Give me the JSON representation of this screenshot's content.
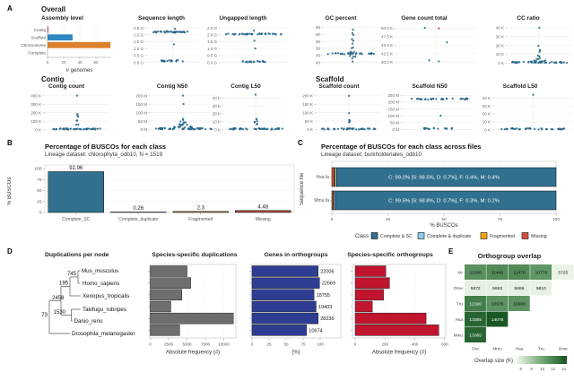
{
  "panel_labels": [
    "A",
    "B",
    "C",
    "D",
    "E"
  ],
  "sections": {
    "overall": "Overall",
    "contig": "Contig",
    "scaffold": "Scaffold"
  },
  "palette": {
    "strip_point": "#23658a",
    "axis": "#999999",
    "grid": "#ececec"
  },
  "chart_data": [
    {
      "id": "assembly_level",
      "type": "bar",
      "orientation": "horizontal",
      "title": "Assembly level",
      "categories": [
        "Contig",
        "Scaffold",
        "Chromosome",
        "Complete"
      ],
      "values": [
        1,
        31,
        78,
        0
      ],
      "colors": [
        "#a93e32",
        "#2c87c2",
        "#dd812e",
        "#cccccc"
      ],
      "xticks": [
        0,
        20,
        40,
        60
      ],
      "xlabel": "# genomes"
    },
    {
      "id": "sequence_length",
      "type": "strip",
      "title": "Sequence length",
      "ylim": [
        -0.15,
        2.7
      ],
      "yticks": [
        {
          "v": 2.5,
          "l": "2.5 G"
        },
        {
          "v": 2.0,
          "l": "2.0 G"
        },
        {
          "v": 1.5,
          "l": "1.5 G"
        },
        {
          "v": 1.0,
          "l": "1.0 G"
        },
        {
          "v": 0.5,
          "l": "0.5 G"
        },
        {
          "v": 0.0,
          "l": "0.0 G"
        }
      ],
      "clusters": [
        {
          "v": 2.2,
          "n": 36,
          "s": 0.92
        },
        {
          "v": 0.12,
          "n": 20,
          "s": 0.5
        }
      ],
      "points": [
        {
          "v": 2.42,
          "x": 0.1
        },
        {
          "v": 2.3,
          "x": -0.25
        },
        {
          "v": 1.27,
          "x": 0.05
        }
      ]
    },
    {
      "id": "ungapped_length",
      "type": "strip",
      "title": "Ungapped length",
      "ylim": [
        -0.15,
        2.7
      ],
      "yticks": [
        {
          "v": 2.5,
          "l": "2.5 G"
        },
        {
          "v": 2.0,
          "l": "2.0 G"
        },
        {
          "v": 1.5,
          "l": "1.5 G"
        },
        {
          "v": 1.0,
          "l": "1.0 G"
        },
        {
          "v": 0.5,
          "l": "0.5 G"
        },
        {
          "v": 0.0,
          "l": "0.0 G"
        }
      ],
      "clusters": [
        {
          "v": 2.05,
          "n": 36,
          "s": 0.92
        },
        {
          "v": 0.05,
          "n": 18,
          "s": 0.42
        }
      ],
      "points": [
        {
          "v": 1.55,
          "x": 0.02
        },
        {
          "v": 1.02,
          "x": 0.05
        },
        {
          "v": 2.3,
          "x": 0.0
        }
      ]
    },
    {
      "id": "gc_percent",
      "type": "strip",
      "title": "GC percent",
      "ylim": [
        38.5,
        66.5
      ],
      "yticks": [
        {
          "v": 65,
          "l": "65"
        },
        {
          "v": 60,
          "l": "60"
        },
        {
          "v": 55,
          "l": "55"
        },
        {
          "v": 50,
          "l": "50"
        },
        {
          "v": 45,
          "l": "45"
        },
        {
          "v": 40,
          "l": "40"
        }
      ],
      "clusters": [
        {
          "v": 46.3,
          "n": 30,
          "s": 0.95
        },
        {
          "v": 44.2,
          "n": 3,
          "s": 0.12
        },
        {
          "v": 47.6,
          "n": 2,
          "s": 0.08
        }
      ],
      "points": [
        {
          "v": 63,
          "x": 0.02
        },
        {
          "v": 60.5,
          "x": 0.0
        },
        {
          "v": 59.8,
          "x": 0.04
        },
        {
          "v": 56.5,
          "x": -0.02
        },
        {
          "v": 55.8,
          "x": 0.03
        },
        {
          "v": 53,
          "x": 0.0
        },
        {
          "v": 50.5,
          "x": 0.02
        },
        {
          "v": 50,
          "x": -0.03
        },
        {
          "v": 41,
          "x": 0.01
        },
        {
          "v": 42.5,
          "x": -0.01
        }
      ]
    },
    {
      "id": "gene_count_total",
      "type": "strip",
      "title": "Gene count total",
      "ylim": [
        39.3,
        50.9
      ],
      "yticks": [
        {
          "v": 50,
          "l": "50.0 K"
        },
        {
          "v": 47.5,
          "l": "47.5 K"
        },
        {
          "v": 45,
          "l": "45.0 K"
        },
        {
          "v": 42.5,
          "l": "42.5 K"
        },
        {
          "v": 40,
          "l": "40.0 K"
        }
      ],
      "clusters": [],
      "points": [
        {
          "v": 50,
          "x": -0.3
        },
        {
          "v": 50.05,
          "x": 0.08,
          "c": "#c0392b"
        },
        {
          "v": 46,
          "x": 0.3
        },
        {
          "v": 40.4,
          "x": -0.18
        },
        {
          "v": 40.15,
          "x": 0.08
        }
      ]
    },
    {
      "id": "cc_ratio",
      "type": "strip",
      "title": "CC ratio",
      "ylim": [
        -1.8,
        43
      ],
      "yticks": [
        {
          "v": 40,
          "l": "40 K"
        },
        {
          "v": 30,
          "l": "30 K"
        },
        {
          "v": 20,
          "l": "20 K"
        },
        {
          "v": 10,
          "l": "10 K"
        },
        {
          "v": 0,
          "l": "0 K"
        }
      ],
      "clusters": [
        {
          "v": 0.8,
          "n": 42,
          "s": 0.97
        },
        {
          "v": 2,
          "n": 8,
          "s": 0.3
        },
        {
          "v": 5,
          "n": 3,
          "s": 0.1
        },
        {
          "v": 8,
          "n": 2,
          "s": 0.06
        },
        {
          "v": 15,
          "n": 2,
          "s": 0.05
        }
      ],
      "points": [
        {
          "v": 12,
          "x": 0.02
        },
        {
          "v": 19,
          "x": -0.02
        },
        {
          "v": 40.5,
          "x": 0.01
        }
      ]
    },
    {
      "id": "contig_count",
      "type": "strip",
      "title": "Contig count",
      "ylim": [
        -15,
        430
      ],
      "yticks": [
        {
          "v": 400,
          "l": "400 K"
        },
        {
          "v": 300,
          "l": "300 K"
        },
        {
          "v": 200,
          "l": "200 K"
        },
        {
          "v": 100,
          "l": "100 K"
        },
        {
          "v": 0,
          "l": "0 K"
        }
      ],
      "clusters": [
        {
          "v": 8,
          "n": 42,
          "s": 0.97
        },
        {
          "v": 60,
          "n": 2,
          "s": 0.05
        },
        {
          "v": 110,
          "n": 2,
          "s": 0.04
        },
        {
          "v": 150,
          "n": 2,
          "s": 0.04
        },
        {
          "v": 185,
          "n": 2,
          "s": 0.03
        }
      ],
      "points": [
        {
          "v": 400,
          "x": 0.0
        }
      ]
    },
    {
      "id": "contig_n50",
      "type": "strip",
      "title": "Contig N50",
      "ylim": [
        -8,
        215
      ],
      "yticks": [
        {
          "v": 200,
          "l": "200 M"
        },
        {
          "v": 150,
          "l": "150 M"
        },
        {
          "v": 100,
          "l": "100 M"
        },
        {
          "v": 50,
          "l": "50 M"
        },
        {
          "v": 0,
          "l": "0 M"
        }
      ],
      "clusters": [
        {
          "v": 5,
          "n": 42,
          "s": 0.97
        },
        {
          "v": 15,
          "n": 10,
          "s": 0.3
        },
        {
          "v": 30,
          "n": 7,
          "s": 0.18
        },
        {
          "v": 45,
          "n": 4,
          "s": 0.1
        },
        {
          "v": 60,
          "n": 2,
          "s": 0.05
        }
      ],
      "points": [
        {
          "v": 150,
          "x": 0.02
        },
        {
          "v": 200,
          "x": 0.0
        }
      ]
    },
    {
      "id": "contig_l50",
      "type": "strip",
      "title": "Contig L50",
      "ylim": [
        -1.5,
        46
      ],
      "yticks": [
        {
          "v": 40,
          "l": "40 K"
        },
        {
          "v": 30,
          "l": "30 K"
        },
        {
          "v": 20,
          "l": "20 K"
        },
        {
          "v": 10,
          "l": "10 K"
        },
        {
          "v": 0,
          "l": "0 K"
        }
      ],
      "clusters": [
        {
          "v": 1,
          "n": 42,
          "s": 0.97
        },
        {
          "v": 7,
          "n": 2,
          "s": 0.06
        },
        {
          "v": 10,
          "n": 3,
          "s": 0.05
        },
        {
          "v": 14,
          "n": 2,
          "s": 0.04
        }
      ],
      "points": [
        {
          "v": 44,
          "x": 0.0
        }
      ]
    },
    {
      "id": "scaffold_count",
      "type": "strip",
      "title": "Scaffold count",
      "ylim": [
        -8,
        215
      ],
      "yticks": [
        {
          "v": 200,
          "l": "200 K"
        },
        {
          "v": 150,
          "l": "150 K"
        },
        {
          "v": 100,
          "l": "100 K"
        },
        {
          "v": 50,
          "l": "50 K"
        },
        {
          "v": 0,
          "l": "0 K"
        }
      ],
      "clusters": [
        {
          "v": 3,
          "n": 40,
          "s": 0.95
        },
        {
          "v": 45,
          "n": 2,
          "s": 0.04
        },
        {
          "v": 55,
          "n": 2,
          "s": 0.03
        }
      ],
      "points": [
        {
          "v": 100,
          "x": 0.01
        },
        {
          "v": 200,
          "x": 0.0
        }
      ]
    },
    {
      "id": "scaffold_n50",
      "type": "strip",
      "title": "Scaffold N50",
      "ylim": [
        -10,
        265
      ],
      "yticks": [
        {
          "v": 250,
          "l": "250 M"
        },
        {
          "v": 200,
          "l": "200 M"
        },
        {
          "v": 150,
          "l": "150 M"
        },
        {
          "v": 100,
          "l": "100 M"
        },
        {
          "v": 50,
          "l": "50 M"
        },
        {
          "v": 0,
          "l": "0 M"
        }
      ],
      "clusters": [
        {
          "v": 222,
          "n": 30,
          "s": 0.9
        },
        {
          "v": 8,
          "n": 16,
          "s": 0.45
        }
      ],
      "points": [
        {
          "v": 100,
          "x": 0.08
        }
      ]
    },
    {
      "id": "scaffold_l50",
      "type": "strip",
      "title": "Scaffold L50",
      "ylim": [
        -1.5,
        46
      ],
      "yticks": [
        {
          "v": 40,
          "l": "40 K"
        },
        {
          "v": 30,
          "l": "30 K"
        },
        {
          "v": 20,
          "l": "20 K"
        },
        {
          "v": 10,
          "l": "10 K"
        },
        {
          "v": 0,
          "l": "0 K"
        }
      ],
      "clusters": [
        {
          "v": 1,
          "n": 36,
          "s": 0.92
        }
      ],
      "points": [
        {
          "v": 44,
          "x": 0.0
        }
      ]
    },
    {
      "id": "busco_single",
      "type": "bar",
      "title": "Percentage of BUSCOs for each class",
      "subtitle": "Lineage dataset: chlorophyta_odb10, N = 1519",
      "ylabel": "% BUSCOs",
      "categories": [
        "Complete_SC",
        "Complete_duplicate",
        "Fragmented",
        "Missing"
      ],
      "values": [
        92.96,
        0.26,
        2.3,
        4.48
      ],
      "value_labels": [
        "92.96",
        "0.26",
        "2.3",
        "4.48"
      ],
      "colors": [
        "#31708e",
        "#9bd1ea",
        "#8a7a2a",
        "#a6453c"
      ],
      "yticks": [
        100,
        75,
        50,
        25,
        0
      ]
    },
    {
      "id": "busco_multi",
      "type": "stacked_bar",
      "title": "Percentage of BUSCOs for each class across files",
      "subtitle": "Lineage dataset: burkholderiales_odb10",
      "ylabel": "Sequence file",
      "xlabel": "% BUSCOs",
      "xticks": [
        0,
        25,
        50,
        75,
        100
      ],
      "rows": [
        {
          "label": "Hsa.fa",
          "annotation": "C: 99.2% [S: 98.5%, D: 0.7%], F: 0.4%, M: 0.4%",
          "complete_sc": 98.5,
          "complete_dup": 0.7,
          "fragmented": 0.4,
          "missing": 0.4
        },
        {
          "label": "Mmu.fa",
          "annotation": "C: 99.5% [S: 98.8%, D: 0.7%], F: 0.3%, M: 0.2%",
          "complete_sc": 98.8,
          "complete_dup": 0.7,
          "fragmented": 0.3,
          "missing": 0.2
        }
      ],
      "legend": {
        "title": "Class",
        "items": [
          {
            "label": "Complete & SC",
            "color": "#31708e"
          },
          {
            "label": "Complete & duplicate",
            "color": "#8ccdec"
          },
          {
            "label": "Fragmented",
            "color": "#f0a30a"
          },
          {
            "label": "Missing",
            "color": "#d4503c"
          }
        ]
      }
    },
    {
      "id": "dup_tree",
      "type": "tree",
      "title": "Duplications per node",
      "species": [
        "Mus_musculus",
        "Homo_sapiens",
        "Xenopus_tropicalis",
        "Takifugu_rubripes",
        "Danio_rerio",
        "Drosophila_melanogaster"
      ],
      "node_values": [
        "745",
        "195",
        "2458",
        "1530",
        "73"
      ]
    },
    {
      "id": "species_dups",
      "type": "bar",
      "orientation": "horizontal",
      "title": "Species-specific duplications",
      "values": [
        5000,
        5500,
        4300,
        2800,
        11300,
        4000
      ],
      "xticks": [
        0,
        2500,
        5000,
        7500,
        10000
      ],
      "xlabel": "Absolute frequency (#)",
      "color": "#6e6e6e"
    },
    {
      "id": "genes_orthogroups",
      "type": "bar",
      "orientation": "horizontal",
      "title": "Genes in orthogroups",
      "percent_values": [
        97,
        99,
        91,
        94,
        97,
        80
      ],
      "bar_labels": [
        "22006",
        "22669",
        "18755",
        "19403",
        "28236",
        "10674"
      ],
      "xticks": [
        0,
        25,
        50,
        75,
        100
      ],
      "xlabel": "(%)",
      "color": "#2e3d93"
    },
    {
      "id": "species_orthogroups",
      "type": "bar",
      "orientation": "horizontal",
      "title": "Species-specific orthogroups",
      "values": [
        205,
        230,
        190,
        115,
        475,
        560
      ],
      "xticks": [
        0,
        200,
        400,
        600
      ],
      "xlabel": "Absolute frequency (#)",
      "color": "#c1152f"
    },
    {
      "id": "orthogroup_overlap",
      "type": "heatmap",
      "title": "Orthogroup overlap",
      "rows": [
        "Xtr",
        "Dme",
        "Tru",
        "Hsa",
        "Mmu"
      ],
      "cols": [
        "Dre",
        "Mmu",
        "Hsa",
        "Tru",
        "Dme"
      ],
      "values": [
        [
          11086,
          11446,
          11478,
          10776,
          5725
        ],
        [
          5872,
          5863,
          5866,
          5810,
          null
        ],
        [
          12100,
          10978,
          10988,
          null,
          null
        ],
        [
          13365,
          14076,
          null,
          null,
          null
        ],
        [
          13365,
          null,
          null,
          null,
          null
        ]
      ],
      "color_stops": [
        "#f0f7ec",
        "#74a877",
        "#14531f"
      ],
      "vmin": 5500,
      "vmax": 14300,
      "text_white_above": 12000,
      "legend": {
        "label": "Overlap size (K)",
        "ticks": [
          6,
          8,
          10,
          12,
          14
        ]
      }
    }
  ]
}
